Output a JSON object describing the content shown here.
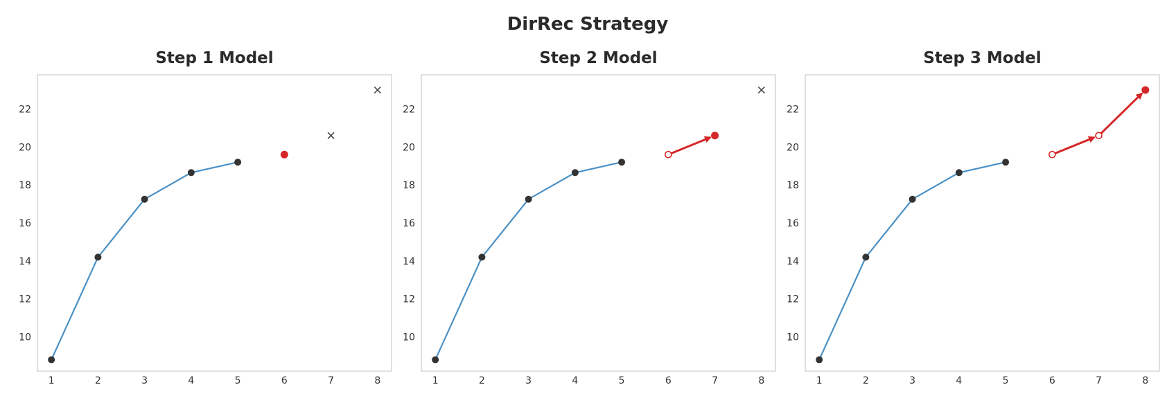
{
  "figure": {
    "title": "DirRec Strategy"
  },
  "chart_data": [
    {
      "type": "line",
      "title": "Step 1 Model",
      "xlabel": "",
      "ylabel": "",
      "xlim": [
        0.7,
        8.3
      ],
      "ylim": [
        8.2,
        23.8
      ],
      "x_ticks": [
        1,
        2,
        3,
        4,
        5,
        6,
        7,
        8
      ],
      "y_ticks": [
        10,
        12,
        14,
        16,
        18,
        20,
        22
      ],
      "grid": false,
      "history": {
        "x": [
          1,
          2,
          3,
          4,
          5
        ],
        "y": [
          8.8,
          14.2,
          17.25,
          18.65,
          19.2
        ],
        "line_color": "#4a90c4",
        "marker_color": "#333333"
      },
      "inputs": [],
      "prediction": {
        "x": 6,
        "y": 19.6,
        "color": "#d62728"
      },
      "future_targets": [
        {
          "x": 7,
          "y": 20.6
        },
        {
          "x": 8,
          "y": 23.0
        }
      ],
      "arrows": []
    },
    {
      "type": "line",
      "title": "Step 2 Model",
      "xlabel": "",
      "ylabel": "",
      "xlim": [
        0.7,
        8.3
      ],
      "ylim": [
        8.2,
        23.8
      ],
      "x_ticks": [
        1,
        2,
        3,
        4,
        5,
        6,
        7,
        8
      ],
      "y_ticks": [
        10,
        12,
        14,
        16,
        18,
        20,
        22
      ],
      "grid": false,
      "history": {
        "x": [
          1,
          2,
          3,
          4,
          5
        ],
        "y": [
          8.8,
          14.2,
          17.25,
          18.65,
          19.2
        ],
        "line_color": "#4a90c4",
        "marker_color": "#333333"
      },
      "inputs": [
        {
          "x": 6,
          "y": 19.6
        }
      ],
      "prediction": {
        "x": 7,
        "y": 20.6,
        "color": "#d62728"
      },
      "future_targets": [
        {
          "x": 8,
          "y": 23.0
        }
      ],
      "arrows": [
        {
          "from": [
            6,
            19.6
          ],
          "to": [
            7,
            20.6
          ]
        }
      ]
    },
    {
      "type": "line",
      "title": "Step 3 Model",
      "xlabel": "",
      "ylabel": "",
      "xlim": [
        0.7,
        8.3
      ],
      "ylim": [
        8.2,
        23.8
      ],
      "x_ticks": [
        1,
        2,
        3,
        4,
        5,
        6,
        7,
        8
      ],
      "y_ticks": [
        10,
        12,
        14,
        16,
        18,
        20,
        22
      ],
      "grid": false,
      "history": {
        "x": [
          1,
          2,
          3,
          4,
          5
        ],
        "y": [
          8.8,
          14.2,
          17.25,
          18.65,
          19.2
        ],
        "line_color": "#4a90c4",
        "marker_color": "#333333"
      },
      "inputs": [
        {
          "x": 6,
          "y": 19.6
        },
        {
          "x": 7,
          "y": 20.6
        }
      ],
      "prediction": {
        "x": 8,
        "y": 23.0,
        "color": "#d62728"
      },
      "future_targets": [],
      "arrows": [
        {
          "from": [
            6,
            19.6
          ],
          "to": [
            7,
            20.6
          ]
        },
        {
          "from": [
            7,
            20.6
          ],
          "to": [
            8,
            23.0
          ]
        }
      ]
    }
  ]
}
